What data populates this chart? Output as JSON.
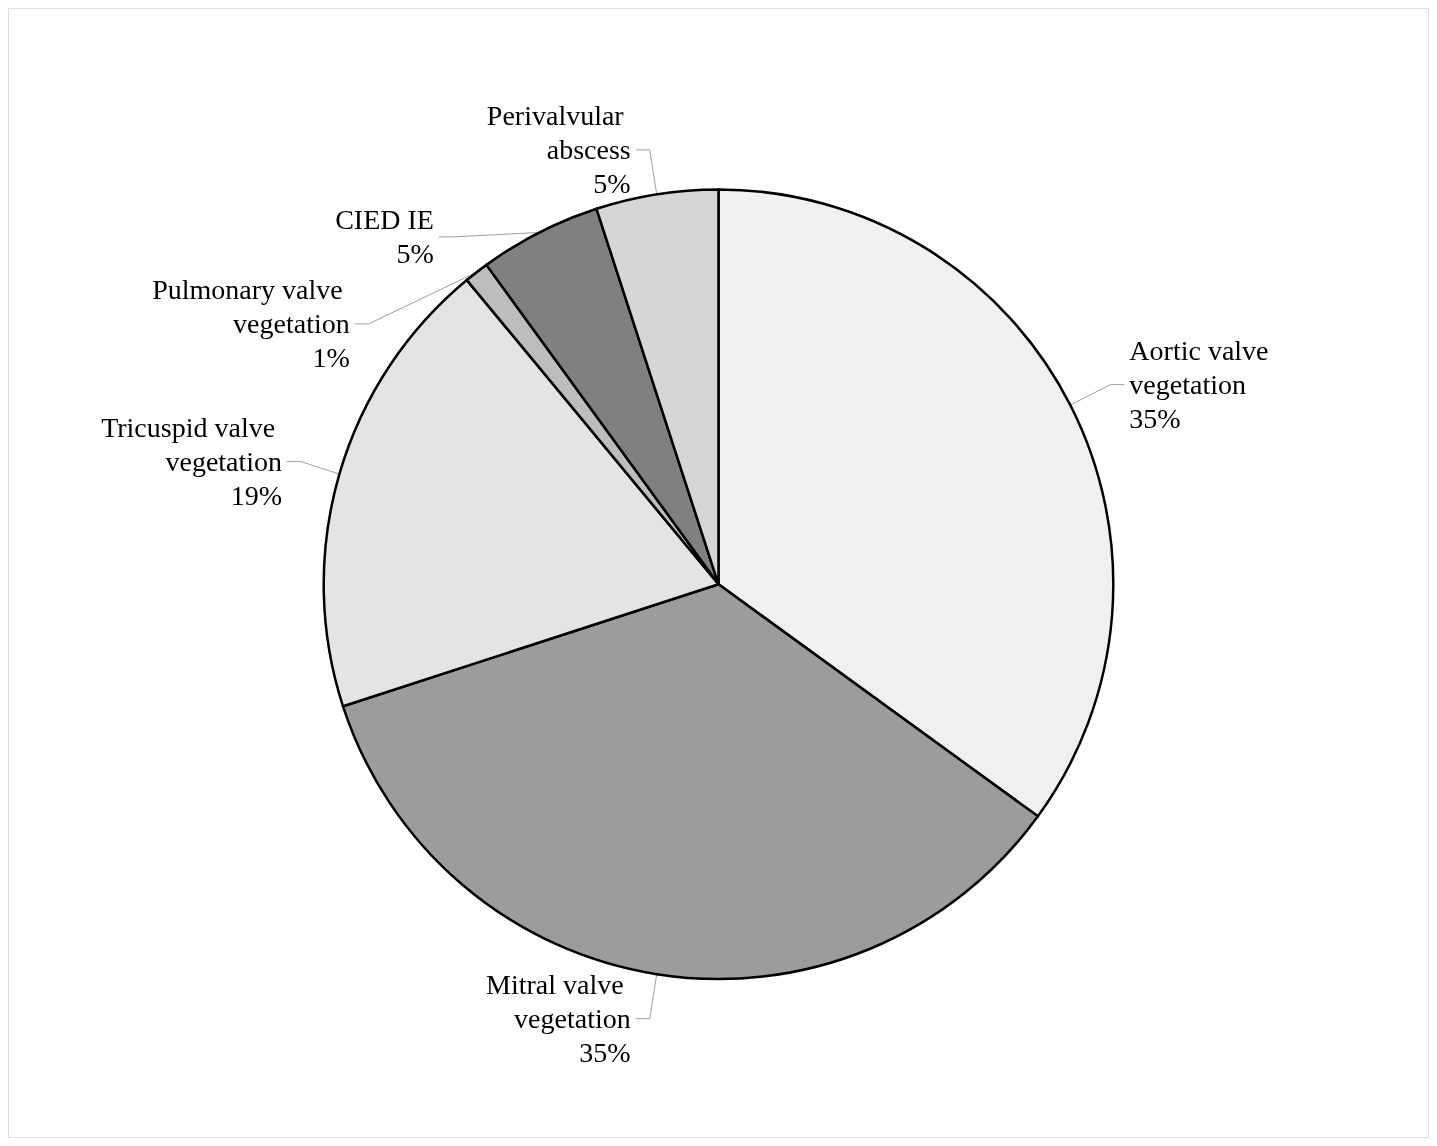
{
  "chart_data": {
    "type": "pie",
    "categories": [
      "Aortic valve vegetation",
      "Mitral valve vegetation",
      "Tricuspid valve vegetation",
      "Pulmonary valve vegetation",
      "CIED IE",
      "Perivalvular abscess"
    ],
    "values": [
      35,
      35,
      19,
      1,
      5,
      5
    ],
    "value_labels": [
      "35%",
      "35%",
      "19%",
      "1%",
      "5%",
      "5%"
    ],
    "colors": [
      "#f0f0f0",
      "#9c9c9c",
      "#e4e4e4",
      "#bdbdbd",
      "#808080",
      "#d6d6d6"
    ],
    "legend": false
  }
}
